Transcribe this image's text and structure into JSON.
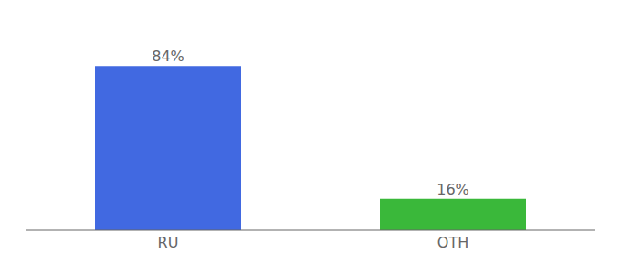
{
  "chart_data": {
    "type": "bar",
    "categories": [
      "RU",
      "OTH"
    ],
    "values": [
      84,
      16
    ],
    "value_labels": [
      "84%",
      "16%"
    ],
    "colors": [
      "#4169e1",
      "#3ab83a"
    ],
    "ylim": [
      0,
      100
    ],
    "data_labels": true,
    "tick_labels": "x",
    "grid": false
  }
}
